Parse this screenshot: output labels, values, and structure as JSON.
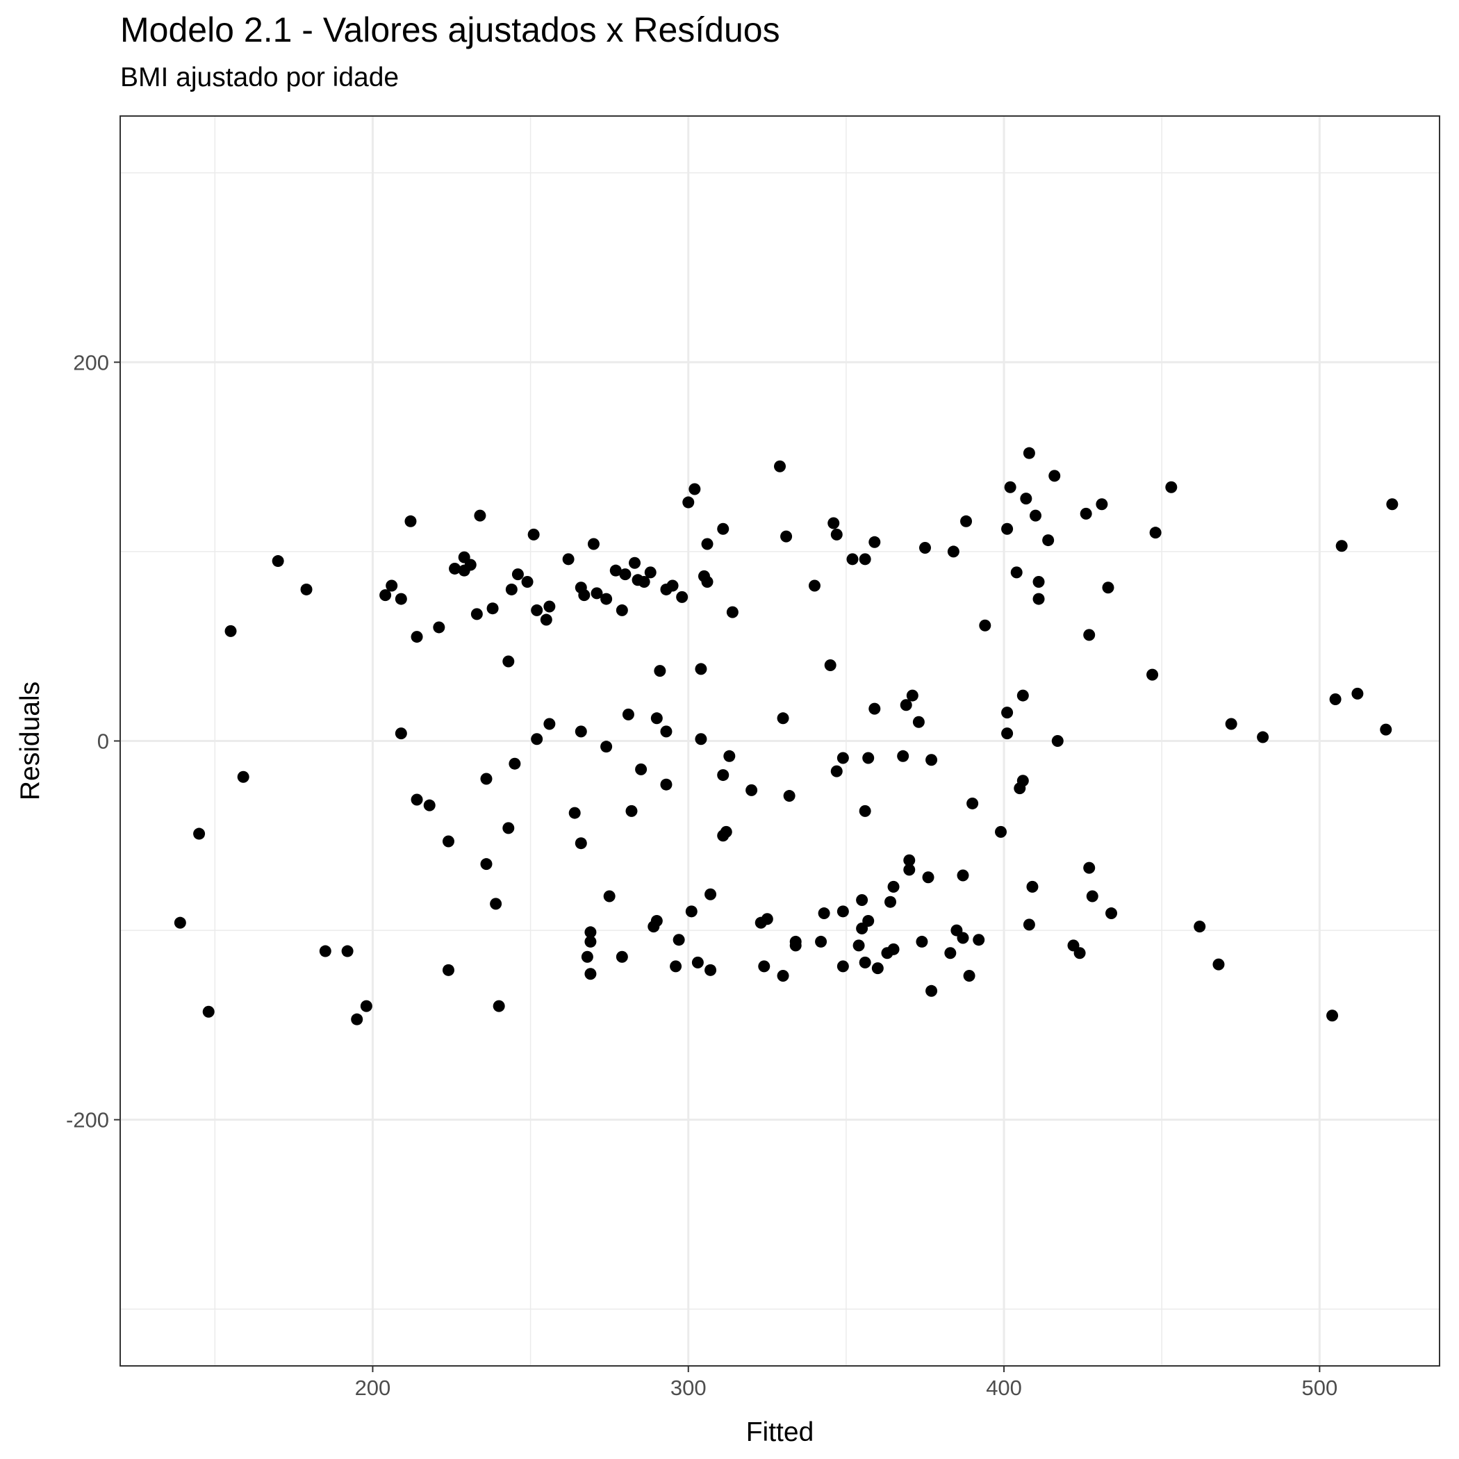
{
  "chart_data": {
    "type": "scatter",
    "title": "Modelo 2.1 - Valores ajustados x Resíduos",
    "subtitle": "BMI ajustado por idade",
    "xlabel": "Fitted",
    "ylabel": "Residuals",
    "xlim": [
      120,
      538
    ],
    "ylim": [
      -330,
      330
    ],
    "x_ticks": [
      200,
      300,
      400,
      500
    ],
    "y_ticks": [
      -200,
      0,
      200
    ],
    "x_tick_labels": [
      "200",
      "300",
      "400",
      "500"
    ],
    "y_tick_labels": [
      "-200",
      "0",
      "200"
    ],
    "grid": true,
    "legend": "none",
    "point_color": "#000000",
    "points": [
      [
        139,
        -96
      ],
      [
        145,
        -49
      ],
      [
        148,
        -143
      ],
      [
        155,
        58
      ],
      [
        159,
        -19
      ],
      [
        170,
        95
      ],
      [
        179,
        80
      ],
      [
        185,
        -111
      ],
      [
        192,
        -111
      ],
      [
        195,
        -147
      ],
      [
        198,
        -140
      ],
      [
        204,
        77
      ],
      [
        206,
        82
      ],
      [
        209,
        75
      ],
      [
        209,
        4
      ],
      [
        212,
        116
      ],
      [
        214,
        -31
      ],
      [
        214,
        55
      ],
      [
        218,
        -34
      ],
      [
        221,
        60
      ],
      [
        224,
        -53
      ],
      [
        224,
        -121
      ],
      [
        226,
        91
      ],
      [
        229,
        97
      ],
      [
        229,
        90
      ],
      [
        231,
        93
      ],
      [
        233,
        67
      ],
      [
        234,
        119
      ],
      [
        236,
        -65
      ],
      [
        236,
        -20
      ],
      [
        238,
        70
      ],
      [
        239,
        -86
      ],
      [
        240,
        -140
      ],
      [
        243,
        42
      ],
      [
        243,
        -46
      ],
      [
        244,
        80
      ],
      [
        245,
        -12
      ],
      [
        246,
        88
      ],
      [
        249,
        84
      ],
      [
        251,
        109
      ],
      [
        252,
        69
      ],
      [
        252,
        1
      ],
      [
        255,
        64
      ],
      [
        256,
        71
      ],
      [
        256,
        9
      ],
      [
        262,
        96
      ],
      [
        264,
        -38
      ],
      [
        266,
        81
      ],
      [
        266,
        -54
      ],
      [
        266,
        5
      ],
      [
        267,
        77
      ],
      [
        268,
        -114
      ],
      [
        269,
        -123
      ],
      [
        269,
        -106
      ],
      [
        269,
        -101
      ],
      [
        270,
        104
      ],
      [
        271,
        78
      ],
      [
        274,
        75
      ],
      [
        274,
        -3
      ],
      [
        275,
        -82
      ],
      [
        277,
        90
      ],
      [
        279,
        69
      ],
      [
        279,
        -114
      ],
      [
        280,
        88
      ],
      [
        281,
        14
      ],
      [
        282,
        -37
      ],
      [
        283,
        94
      ],
      [
        284,
        85
      ],
      [
        285,
        -15
      ],
      [
        286,
        84
      ],
      [
        288,
        89
      ],
      [
        289,
        -98
      ],
      [
        290,
        12
      ],
      [
        290,
        -95
      ],
      [
        291,
        37
      ],
      [
        293,
        -23
      ],
      [
        293,
        5
      ],
      [
        293,
        80
      ],
      [
        295,
        82
      ],
      [
        296,
        -119
      ],
      [
        297,
        -105
      ],
      [
        298,
        76
      ],
      [
        300,
        126
      ],
      [
        301,
        -90
      ],
      [
        302,
        133
      ],
      [
        303,
        -117
      ],
      [
        304,
        1
      ],
      [
        304,
        38
      ],
      [
        305,
        87
      ],
      [
        306,
        84
      ],
      [
        306,
        104
      ],
      [
        307,
        -81
      ],
      [
        307,
        -121
      ],
      [
        311,
        112
      ],
      [
        311,
        -18
      ],
      [
        311,
        -50
      ],
      [
        312,
        -48
      ],
      [
        313,
        -8
      ],
      [
        314,
        68
      ],
      [
        320,
        -26
      ],
      [
        323,
        -96
      ],
      [
        324,
        -119
      ],
      [
        325,
        -94
      ],
      [
        329,
        145
      ],
      [
        330,
        -124
      ],
      [
        330,
        12
      ],
      [
        331,
        108
      ],
      [
        332,
        -29
      ],
      [
        334,
        -108
      ],
      [
        334,
        -106
      ],
      [
        340,
        82
      ],
      [
        342,
        -106
      ],
      [
        343,
        -91
      ],
      [
        345,
        40
      ],
      [
        346,
        115
      ],
      [
        347,
        -16
      ],
      [
        347,
        109
      ],
      [
        349,
        -9
      ],
      [
        349,
        -90
      ],
      [
        349,
        -119
      ],
      [
        352,
        96
      ],
      [
        354,
        -108
      ],
      [
        355,
        -84
      ],
      [
        355,
        -99
      ],
      [
        356,
        -117
      ],
      [
        356,
        96
      ],
      [
        356,
        -37
      ],
      [
        357,
        -95
      ],
      [
        357,
        -9
      ],
      [
        359,
        17
      ],
      [
        359,
        105
      ],
      [
        360,
        -120
      ],
      [
        363,
        -112
      ],
      [
        364,
        -85
      ],
      [
        365,
        -110
      ],
      [
        365,
        -77
      ],
      [
        368,
        -8
      ],
      [
        369,
        19
      ],
      [
        370,
        -63
      ],
      [
        370,
        -68
      ],
      [
        371,
        24
      ],
      [
        373,
        10
      ],
      [
        374,
        -106
      ],
      [
        375,
        102
      ],
      [
        376,
        -72
      ],
      [
        377,
        -132
      ],
      [
        377,
        -10
      ],
      [
        383,
        -112
      ],
      [
        384,
        100
      ],
      [
        385,
        -100
      ],
      [
        387,
        -104
      ],
      [
        387,
        -71
      ],
      [
        388,
        116
      ],
      [
        389,
        -124
      ],
      [
        390,
        -33
      ],
      [
        392,
        -105
      ],
      [
        394,
        61
      ],
      [
        399,
        -48
      ],
      [
        401,
        112
      ],
      [
        401,
        4
      ],
      [
        401,
        15
      ],
      [
        402,
        134
      ],
      [
        404,
        89
      ],
      [
        405,
        -25
      ],
      [
        406,
        24
      ],
      [
        406,
        -21
      ],
      [
        407,
        128
      ],
      [
        408,
        -97
      ],
      [
        408,
        152
      ],
      [
        409,
        -77
      ],
      [
        410,
        119
      ],
      [
        411,
        84
      ],
      [
        411,
        75
      ],
      [
        414,
        106
      ],
      [
        416,
        140
      ],
      [
        417,
        0
      ],
      [
        422,
        -108
      ],
      [
        424,
        -112
      ],
      [
        426,
        120
      ],
      [
        427,
        56
      ],
      [
        427,
        -67
      ],
      [
        428,
        -82
      ],
      [
        431,
        125
      ],
      [
        433,
        81
      ],
      [
        434,
        -91
      ],
      [
        447,
        35
      ],
      [
        448,
        110
      ],
      [
        453,
        134
      ],
      [
        462,
        -98
      ],
      [
        468,
        -118
      ],
      [
        472,
        9
      ],
      [
        482,
        2
      ],
      [
        504,
        -145
      ],
      [
        505,
        22
      ],
      [
        507,
        103
      ],
      [
        512,
        25
      ],
      [
        521,
        6
      ],
      [
        523,
        125
      ]
    ]
  }
}
